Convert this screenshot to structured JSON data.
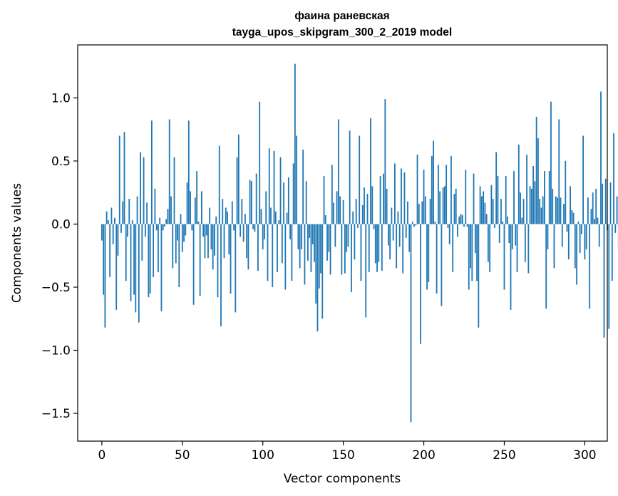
{
  "chart_data": {
    "type": "bar",
    "title": "фаина раневская",
    "subtitle": "tayga_upos_skipgram_300_2_2019 model",
    "xlabel": "Vector components",
    "ylabel": "Components values",
    "xlim": [
      -15,
      314
    ],
    "ylim": [
      -1.72,
      1.42
    ],
    "xticks": [
      0,
      50,
      100,
      150,
      200,
      250,
      300
    ],
    "xtick_labels": [
      "0",
      "50",
      "100",
      "150",
      "200",
      "250",
      "300"
    ],
    "yticks": [
      1.0,
      0.5,
      0.0,
      -0.5,
      -1.0,
      -1.5
    ],
    "ytick_labels": [
      "1.0",
      "0.5",
      "0.0",
      "−0.5",
      "−1.0",
      "−1.5"
    ],
    "bar_color": "#1f77b4",
    "grid": false,
    "legend": "none",
    "series": [
      {
        "name": "components",
        "values": [
          -0.13,
          -0.56,
          -0.82,
          0.1,
          0.03,
          -0.42,
          0.13,
          -0.16,
          0.05,
          -0.68,
          -0.25,
          0.7,
          -0.07,
          0.18,
          0.73,
          -0.45,
          -0.1,
          0.2,
          -0.61,
          0.03,
          -0.56,
          -0.7,
          0.22,
          -0.78,
          0.57,
          -0.29,
          0.53,
          -0.1,
          0.17,
          -0.58,
          -0.55,
          0.82,
          -0.42,
          0.28,
          -0.05,
          -0.38,
          0.05,
          -0.69,
          -0.05,
          -0.02,
          0.04,
          0.12,
          0.83,
          0.22,
          -0.35,
          0.53,
          -0.31,
          -0.13,
          -0.5,
          0.08,
          -0.22,
          -0.14,
          -0.09,
          0.33,
          0.82,
          0.26,
          -0.05,
          -0.64,
          0.21,
          0.42,
          0.02,
          -0.57,
          0.26,
          -0.1,
          -0.27,
          -0.09,
          -0.27,
          0.13,
          -0.2,
          -0.36,
          -0.25,
          0.06,
          -0.58,
          0.62,
          -0.81,
          0.2,
          -0.27,
          0.13,
          0.1,
          -0.24,
          -0.55,
          0.18,
          -0.05,
          -0.7,
          0.53,
          0.71,
          -0.1,
          0.2,
          -0.14,
          0.08,
          -0.27,
          -0.36,
          0.35,
          0.34,
          -0.04,
          -0.06,
          0.4,
          -0.37,
          0.97,
          0.12,
          -0.2,
          -0.12,
          0.26,
          -0.45,
          0.6,
          0.13,
          -0.5,
          0.58,
          0.1,
          -0.38,
          0.03,
          0.53,
          -0.31,
          0.33,
          -0.52,
          0.09,
          0.37,
          -0.12,
          -0.45,
          0.48,
          1.27,
          0.7,
          -0.2,
          -0.35,
          -0.2,
          0.59,
          -0.48,
          0.34,
          -0.29,
          -0.11,
          -0.38,
          -0.16,
          -0.3,
          -0.63,
          -0.85,
          -0.51,
          -0.39,
          -0.75,
          0.38,
          0.07,
          -0.29,
          -0.22,
          -0.4,
          0.47,
          0.17,
          -0.18,
          0.26,
          0.83,
          0.22,
          -0.4,
          0.19,
          -0.39,
          -0.22,
          -0.18,
          0.74,
          -0.54,
          0.1,
          -0.28,
          0.2,
          -0.03,
          0.7,
          -0.45,
          0.15,
          0.29,
          -0.74,
          0.24,
          -0.38,
          0.84,
          0.3,
          -0.04,
          -0.31,
          -0.38,
          -0.3,
          0.38,
          -0.37,
          0.4,
          0.99,
          0.28,
          -0.17,
          -0.28,
          0.13,
          -0.13,
          0.48,
          -0.35,
          0.1,
          -0.18,
          0.44,
          -0.39,
          0.41,
          -0.11,
          0.18,
          -0.22,
          -1.57,
          0.02,
          -0.02,
          -0.01,
          0.55,
          0.16,
          -0.95,
          0.18,
          0.43,
          0.22,
          -0.52,
          -0.46,
          0.2,
          0.54,
          0.66,
          0.02,
          -0.55,
          0.47,
          0.26,
          -0.65,
          0.29,
          0.3,
          0.47,
          -0.03,
          -0.16,
          0.54,
          -0.38,
          0.24,
          0.28,
          -0.1,
          0.06,
          0.08,
          0.07,
          -0.02,
          0.43,
          -0.02,
          -0.52,
          -0.35,
          -0.45,
          0.4,
          -0.23,
          -0.45,
          -0.82,
          0.3,
          0.22,
          0.26,
          0.17,
          0.08,
          -0.3,
          -0.38,
          0.31,
          0.2,
          -0.03,
          0.57,
          0.38,
          -0.15,
          0.2,
          0.02,
          -0.52,
          0.38,
          0.06,
          -0.15,
          -0.68,
          -0.2,
          0.42,
          -0.17,
          -0.38,
          0.63,
          0.25,
          0.05,
          0.2,
          -0.3,
          0.55,
          -0.39,
          0.3,
          0.28,
          0.46,
          0.34,
          0.85,
          0.68,
          0.2,
          0.13,
          0.22,
          0.42,
          -0.67,
          -0.2,
          0.42,
          0.97,
          0.28,
          -0.35,
          0.22,
          0.21,
          0.83,
          0.21,
          -0.18,
          0.16,
          0.5,
          -0.06,
          -0.28,
          0.3,
          0.11,
          0.09,
          -0.35,
          -0.48,
          0.02,
          -0.23,
          -0.08,
          0.7,
          -0.28,
          -0.2,
          0.21,
          -0.67,
          0.12,
          0.25,
          0.04,
          0.28,
          0.05,
          -0.18,
          1.05,
          0.32,
          -0.9,
          0.36,
          -0.05,
          -0.83,
          0.33,
          -0.45,
          0.72,
          -0.07,
          0.22,
          -0.21
        ]
      }
    ]
  }
}
